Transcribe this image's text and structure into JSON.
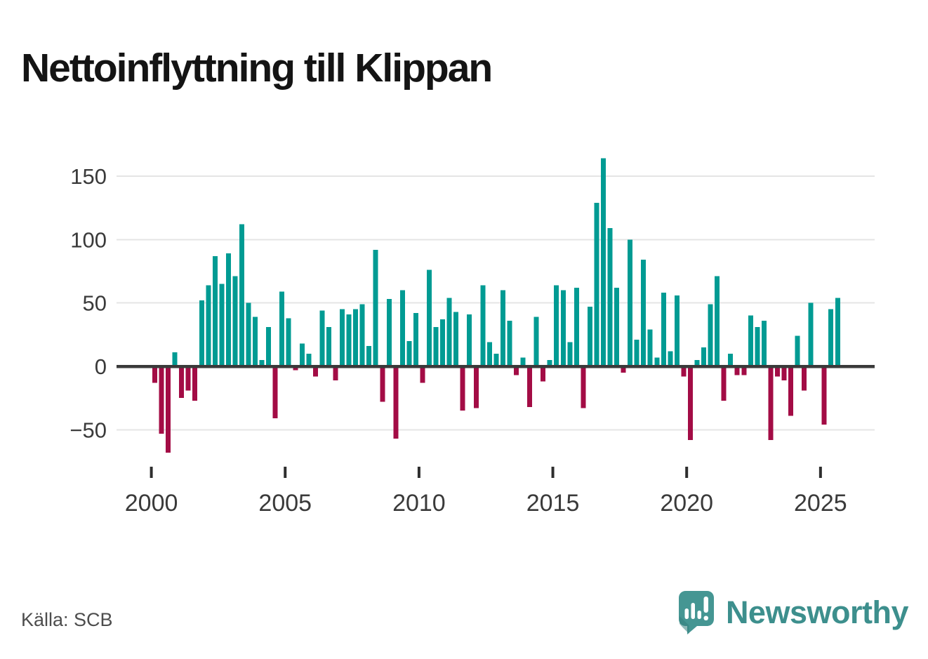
{
  "title": "Nettoinflyttning till Klippan",
  "source": "Källa: SCB",
  "branding": {
    "name": "Newsworthy",
    "text_color": "#3d8f8d",
    "icon_color": "#459693",
    "icon_shadow_color": "#357f7d",
    "icon_mark_color": "#ffffff"
  },
  "chart_data": {
    "type": "bar",
    "title": "Nettoinflyttning till Klippan",
    "x_frequency": "quarterly",
    "start_period": "2000-Q1",
    "end_period": "2025-Q3",
    "values_by_year": {
      "2000": [
        -13,
        -53,
        -68,
        11
      ],
      "2001": [
        -25,
        -19,
        -27,
        52
      ],
      "2002": [
        64,
        87,
        65,
        89
      ],
      "2003": [
        71,
        112,
        50,
        39
      ],
      "2004": [
        5,
        31,
        -41,
        59
      ],
      "2005": [
        38,
        -3,
        18,
        10
      ],
      "2006": [
        -8,
        44,
        31,
        -11
      ],
      "2007": [
        45,
        41,
        45,
        49
      ],
      "2008": [
        16,
        92,
        -28,
        53
      ],
      "2009": [
        -57,
        60,
        20,
        42
      ],
      "2010": [
        -13,
        76,
        31,
        37
      ],
      "2011": [
        54,
        43,
        -35,
        41
      ],
      "2012": [
        -33,
        64,
        19,
        10
      ],
      "2013": [
        60,
        36,
        -7,
        7
      ],
      "2014": [
        -32,
        39,
        -12,
        5
      ],
      "2015": [
        64,
        60,
        19,
        62
      ],
      "2016": [
        -33,
        47,
        129,
        164
      ],
      "2017": [
        109,
        62,
        -5,
        100
      ],
      "2018": [
        21,
        84,
        29,
        7
      ],
      "2019": [
        58,
        12,
        56,
        -8
      ],
      "2020": [
        -58,
        5,
        15,
        49
      ],
      "2021": [
        71,
        -27,
        10,
        -7
      ],
      "2022": [
        -7,
        40,
        31,
        36
      ],
      "2023": [
        -58,
        -8,
        -11,
        -39
      ],
      "2024": [
        24,
        -19,
        50,
        0
      ],
      "2025": [
        -46,
        45,
        54
      ]
    },
    "x_tick_labels": [
      "2000",
      "2005",
      "2010",
      "2015",
      "2020",
      "2025"
    ],
    "y_ticks": [
      {
        "value": 150,
        "label": "150"
      },
      {
        "value": 100,
        "label": "100"
      },
      {
        "value": 50,
        "label": "50"
      },
      {
        "value": 0,
        "label": "0"
      },
      {
        "value": -50,
        "label": "−50"
      }
    ],
    "ylim": [
      -70,
      170
    ],
    "grid": "horizontal",
    "legend": false,
    "positive_color": "#009b93",
    "negative_color": "#a30c45",
    "axis_color": "#3a3a3a",
    "tick_color": "#2e2e2e",
    "grid_color": "#e5e5e5",
    "tick_label_color": "#3a3a3a"
  }
}
